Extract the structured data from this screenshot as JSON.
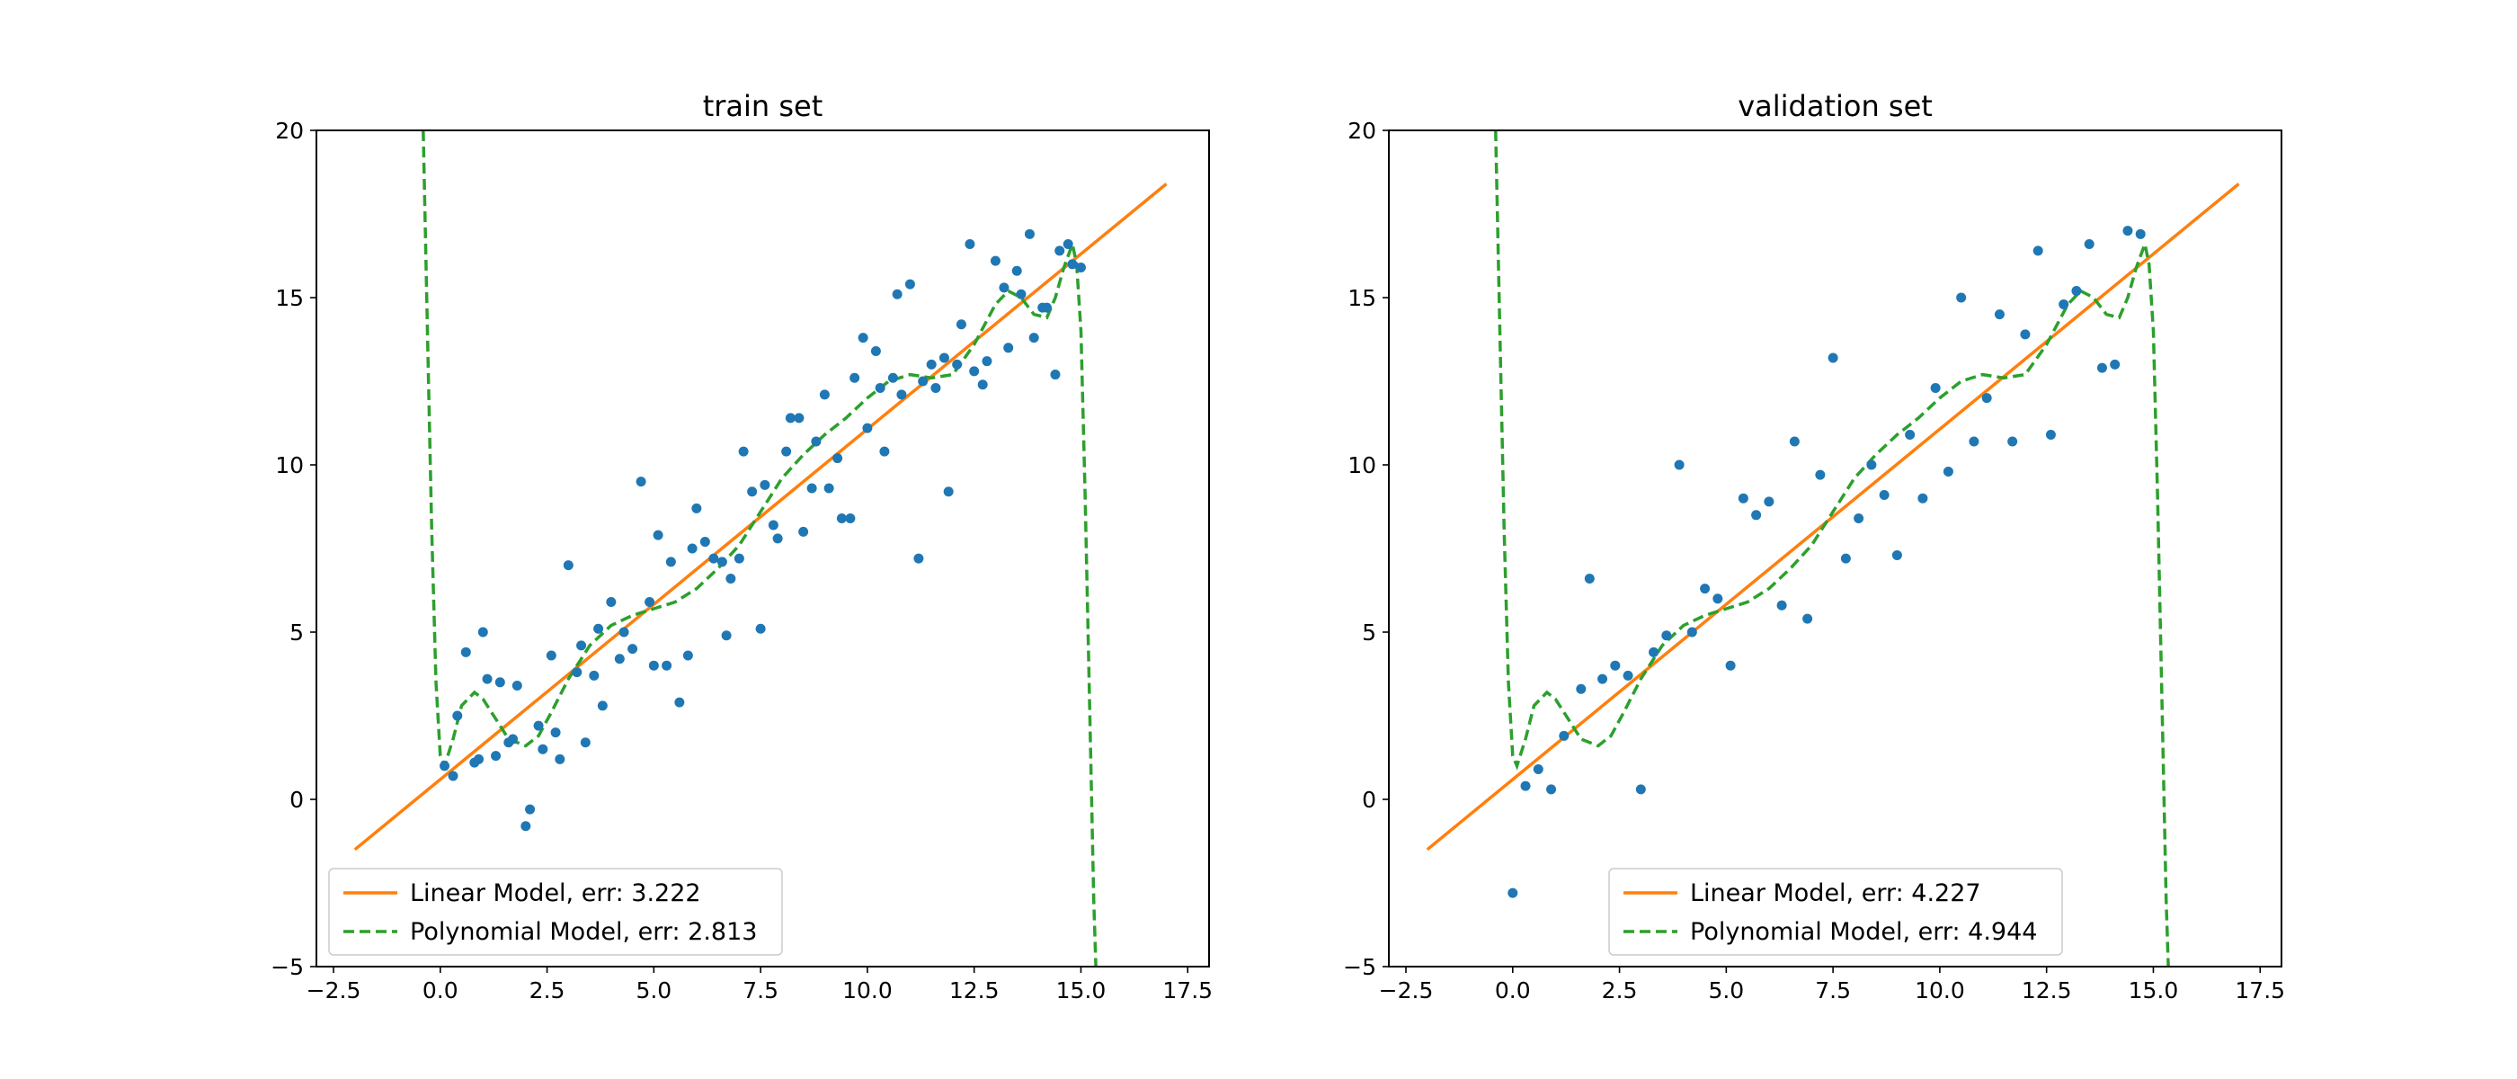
{
  "chart_data": [
    {
      "type": "scatter",
      "title": "train set",
      "xlabel": "",
      "ylabel": "",
      "xlim": [
        -2.9,
        18.0
      ],
      "ylim": [
        -5,
        20
      ],
      "xticks": [
        -2.5,
        0.0,
        2.5,
        5.0,
        7.5,
        10.0,
        12.5,
        15.0,
        17.5
      ],
      "xtick_labels": [
        "−2.5",
        "0.0",
        "2.5",
        "5.0",
        "7.5",
        "10.0",
        "12.5",
        "15.0",
        "17.5"
      ],
      "yticks": [
        -5,
        0,
        5,
        10,
        15,
        20
      ],
      "ytick_labels": [
        "−5",
        "0",
        "5",
        "10",
        "15",
        "20"
      ],
      "grid": false,
      "legend_position": "lower-left",
      "points_color": "#1f77b4",
      "points": [
        [
          0.1,
          1.0
        ],
        [
          0.3,
          0.7
        ],
        [
          0.4,
          2.5
        ],
        [
          0.6,
          4.4
        ],
        [
          0.8,
          1.1
        ],
        [
          0.9,
          1.2
        ],
        [
          1.0,
          5.0
        ],
        [
          1.1,
          3.6
        ],
        [
          1.3,
          1.3
        ],
        [
          1.4,
          3.5
        ],
        [
          1.6,
          1.7
        ],
        [
          1.7,
          1.8
        ],
        [
          1.8,
          3.4
        ],
        [
          2.0,
          -0.8
        ],
        [
          2.1,
          -0.3
        ],
        [
          2.3,
          2.2
        ],
        [
          2.4,
          1.5
        ],
        [
          2.6,
          4.3
        ],
        [
          2.7,
          2.0
        ],
        [
          2.8,
          1.2
        ],
        [
          3.0,
          7.0
        ],
        [
          3.2,
          3.8
        ],
        [
          3.3,
          4.6
        ],
        [
          3.4,
          1.7
        ],
        [
          3.6,
          3.7
        ],
        [
          3.7,
          5.1
        ],
        [
          3.8,
          2.8
        ],
        [
          4.0,
          5.9
        ],
        [
          4.2,
          4.2
        ],
        [
          4.3,
          5.0
        ],
        [
          4.5,
          4.5
        ],
        [
          4.7,
          9.5
        ],
        [
          4.9,
          5.9
        ],
        [
          5.0,
          4.0
        ],
        [
          5.1,
          7.9
        ],
        [
          5.3,
          4.0
        ],
        [
          5.4,
          7.1
        ],
        [
          5.6,
          2.9
        ],
        [
          5.8,
          4.3
        ],
        [
          5.9,
          7.5
        ],
        [
          6.0,
          8.7
        ],
        [
          6.2,
          7.7
        ],
        [
          6.4,
          7.2
        ],
        [
          6.6,
          7.1
        ],
        [
          6.7,
          4.9
        ],
        [
          6.8,
          6.6
        ],
        [
          7.0,
          7.2
        ],
        [
          7.1,
          10.4
        ],
        [
          7.3,
          9.2
        ],
        [
          7.5,
          5.1
        ],
        [
          7.6,
          9.4
        ],
        [
          7.8,
          8.2
        ],
        [
          7.9,
          7.8
        ],
        [
          8.1,
          10.4
        ],
        [
          8.2,
          11.4
        ],
        [
          8.4,
          11.4
        ],
        [
          8.5,
          8.0
        ],
        [
          8.7,
          9.3
        ],
        [
          8.8,
          10.7
        ],
        [
          9.0,
          12.1
        ],
        [
          9.1,
          9.3
        ],
        [
          9.3,
          10.2
        ],
        [
          9.4,
          8.4
        ],
        [
          9.6,
          8.4
        ],
        [
          9.7,
          12.6
        ],
        [
          9.9,
          13.8
        ],
        [
          10.0,
          11.1
        ],
        [
          10.2,
          13.4
        ],
        [
          10.3,
          12.3
        ],
        [
          10.4,
          10.4
        ],
        [
          10.6,
          12.6
        ],
        [
          10.7,
          15.1
        ],
        [
          10.8,
          12.1
        ],
        [
          11.0,
          15.4
        ],
        [
          11.2,
          7.2
        ],
        [
          11.3,
          12.5
        ],
        [
          11.5,
          13.0
        ],
        [
          11.6,
          12.3
        ],
        [
          11.8,
          13.2
        ],
        [
          11.9,
          9.2
        ],
        [
          12.1,
          13.0
        ],
        [
          12.2,
          14.2
        ],
        [
          12.4,
          16.6
        ],
        [
          12.5,
          12.8
        ],
        [
          12.7,
          12.4
        ],
        [
          12.8,
          13.1
        ],
        [
          13.0,
          16.1
        ],
        [
          13.2,
          15.3
        ],
        [
          13.3,
          13.5
        ],
        [
          13.5,
          15.8
        ],
        [
          13.6,
          15.1
        ],
        [
          13.8,
          16.9
        ],
        [
          13.9,
          13.8
        ],
        [
          14.1,
          14.7
        ],
        [
          14.2,
          14.7
        ],
        [
          14.4,
          12.7
        ],
        [
          14.5,
          16.4
        ],
        [
          14.7,
          16.6
        ],
        [
          14.8,
          16.0
        ],
        [
          15.0,
          15.9
        ]
      ],
      "series": [
        {
          "name": "Linear Model, err: 3.222",
          "style": "solid",
          "color": "#ff7f0e"
        },
        {
          "name": "Polynomial Model, err: 2.813",
          "style": "dashed",
          "color": "#2ca02c"
        }
      ]
    },
    {
      "type": "scatter",
      "title": "validation set",
      "xlabel": "",
      "ylabel": "",
      "xlim": [
        -2.9,
        18.0
      ],
      "ylim": [
        -5,
        20
      ],
      "xticks": [
        -2.5,
        0.0,
        2.5,
        5.0,
        7.5,
        10.0,
        12.5,
        15.0,
        17.5
      ],
      "xtick_labels": [
        "−2.5",
        "0.0",
        "2.5",
        "5.0",
        "7.5",
        "10.0",
        "12.5",
        "15.0",
        "17.5"
      ],
      "yticks": [
        -5,
        0,
        5,
        10,
        15,
        20
      ],
      "ytick_labels": [
        "−5",
        "0",
        "5",
        "10",
        "15",
        "20"
      ],
      "grid": false,
      "legend_position": "lower-center",
      "points_color": "#1f77b4",
      "points": [
        [
          0.0,
          -2.8
        ],
        [
          0.3,
          0.4
        ],
        [
          0.6,
          0.9
        ],
        [
          0.9,
          0.3
        ],
        [
          1.2,
          1.9
        ],
        [
          1.6,
          3.3
        ],
        [
          1.8,
          6.6
        ],
        [
          2.1,
          3.6
        ],
        [
          2.4,
          4.0
        ],
        [
          2.7,
          3.7
        ],
        [
          3.0,
          0.3
        ],
        [
          3.3,
          4.4
        ],
        [
          3.6,
          4.9
        ],
        [
          3.9,
          10.0
        ],
        [
          4.2,
          5.0
        ],
        [
          4.5,
          6.3
        ],
        [
          4.8,
          6.0
        ],
        [
          5.1,
          4.0
        ],
        [
          5.4,
          9.0
        ],
        [
          5.7,
          8.5
        ],
        [
          6.0,
          8.9
        ],
        [
          6.3,
          5.8
        ],
        [
          6.6,
          10.7
        ],
        [
          6.9,
          5.4
        ],
        [
          7.2,
          9.7
        ],
        [
          7.5,
          13.2
        ],
        [
          7.8,
          7.2
        ],
        [
          8.1,
          8.4
        ],
        [
          8.4,
          10.0
        ],
        [
          8.7,
          9.1
        ],
        [
          9.0,
          7.3
        ],
        [
          9.3,
          10.9
        ],
        [
          9.6,
          9.0
        ],
        [
          9.9,
          12.3
        ],
        [
          10.2,
          9.8
        ],
        [
          10.5,
          15.0
        ],
        [
          10.8,
          10.7
        ],
        [
          11.1,
          12.0
        ],
        [
          11.4,
          14.5
        ],
        [
          11.7,
          10.7
        ],
        [
          12.0,
          13.9
        ],
        [
          12.3,
          16.4
        ],
        [
          12.6,
          10.9
        ],
        [
          12.9,
          14.8
        ],
        [
          13.2,
          15.2
        ],
        [
          13.5,
          16.6
        ],
        [
          13.8,
          12.9
        ],
        [
          14.1,
          13.0
        ],
        [
          14.4,
          17.0
        ],
        [
          14.7,
          16.9
        ]
      ],
      "series": [
        {
          "name": "Linear Model, err: 4.227",
          "style": "solid",
          "color": "#ff7f0e"
        },
        {
          "name": "Polynomial Model, err: 4.944",
          "style": "dashed",
          "color": "#2ca02c"
        }
      ]
    }
  ],
  "curves": {
    "linear": {
      "x": [
        -2.0,
        17.0
      ],
      "y": [
        -1.5,
        18.4
      ]
    },
    "polynomial": {
      "x": [
        -0.4,
        -0.3,
        -0.2,
        -0.1,
        0.0,
        0.1,
        0.3,
        0.5,
        0.8,
        1.0,
        1.3,
        1.6,
        2.0,
        2.3,
        2.6,
        3.0,
        3.5,
        4.0,
        4.5,
        5.0,
        5.5,
        6.0,
        6.5,
        7.0,
        7.5,
        8.0,
        8.5,
        9.0,
        9.5,
        10.0,
        10.5,
        11.0,
        11.5,
        12.0,
        12.5,
        13.0,
        13.3,
        13.6,
        13.9,
        14.2,
        14.4,
        14.6,
        14.8,
        14.9,
        15.0,
        15.1,
        15.2,
        15.3,
        15.35
      ],
      "y": [
        20.0,
        14.0,
        8.0,
        3.5,
        1.3,
        1.0,
        1.8,
        2.8,
        3.2,
        3.0,
        2.4,
        1.8,
        1.6,
        1.9,
        2.6,
        3.6,
        4.6,
        5.2,
        5.5,
        5.7,
        5.9,
        6.3,
        6.9,
        7.6,
        8.6,
        9.6,
        10.3,
        10.9,
        11.4,
        12.0,
        12.5,
        12.7,
        12.6,
        12.7,
        13.6,
        14.8,
        15.2,
        15.0,
        14.5,
        14.4,
        15.0,
        15.9,
        16.6,
        16.0,
        14.0,
        9.0,
        3.0,
        -3.0,
        -5.0
      ]
    }
  }
}
